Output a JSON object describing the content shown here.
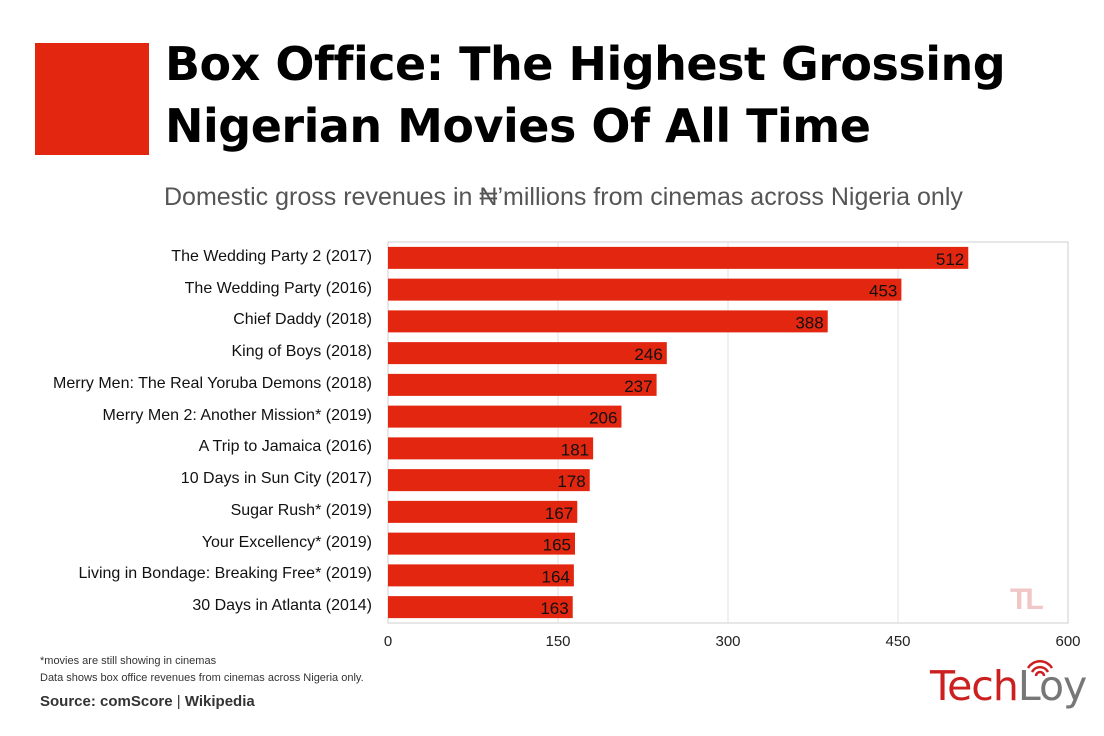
{
  "header": {
    "title_line1": "Box Office: The Highest Grossing",
    "title_line2": "Nigerian Movies Of All Time",
    "subtitle": "Domestic gross revenues in ₦’millions from cinemas across Nigeria only"
  },
  "footer": {
    "note1": "*movies are still showing in cinemas",
    "note2": "Data shows box office revenues from cinemas across Nigeria only.",
    "source_label": "Source:",
    "source_a": "comScore",
    "source_sep": "|",
    "source_b": "Wikipedia",
    "brand_part1": "Tech",
    "brand_part2": "Loy",
    "watermark": "TL"
  },
  "colors": {
    "bar": "#e32610",
    "accent": "#e32610"
  },
  "chart_data": {
    "type": "bar",
    "orientation": "horizontal",
    "title": "Box Office: The Highest Grossing Nigerian Movies Of All Time",
    "subtitle": "Domestic gross revenues in ₦’millions from cinemas across Nigeria only",
    "xlabel": "",
    "ylabel": "",
    "xlim": [
      0,
      600
    ],
    "xticks": [
      0,
      150,
      300,
      450,
      600
    ],
    "grid": true,
    "categories": [
      "The Wedding Party 2 (2017)",
      "The Wedding Party (2016)",
      "Chief Daddy (2018)",
      "King of Boys (2018)",
      "Merry Men: The Real Yoruba Demons (2018)",
      "Merry Men 2: Another Mission* (2019)",
      "A Trip to Jamaica (2016)",
      "10 Days in Sun City (2017)",
      "Sugar Rush* (2019)",
      "Your Excellency* (2019)",
      "Living in Bondage: Breaking Free* (2019)",
      "30 Days in Atlanta (2014)"
    ],
    "values": [
      512,
      453,
      388,
      246,
      237,
      206,
      181,
      178,
      167,
      165,
      164,
      163
    ]
  }
}
